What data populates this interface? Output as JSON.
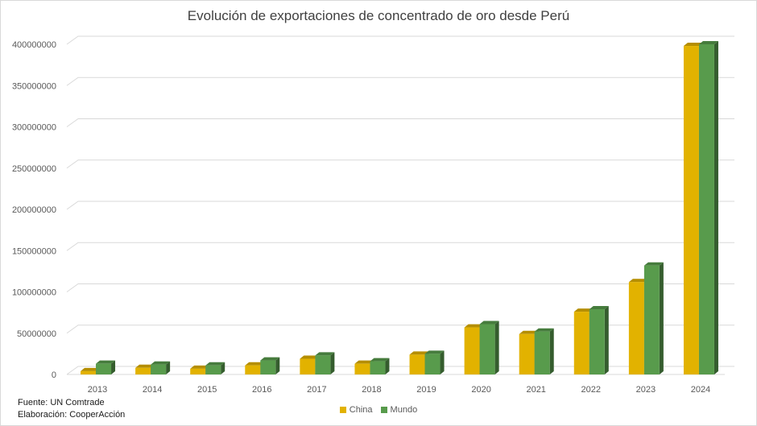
{
  "chart_data": {
    "type": "bar",
    "title": "Evolución de exportaciones de concentrado de oro desde Perú",
    "categories": [
      "2013",
      "2014",
      "2015",
      "2016",
      "2017",
      "2018",
      "2019",
      "2020",
      "2021",
      "2022",
      "2023",
      "2024"
    ],
    "series": [
      {
        "name": "China",
        "color": "#e2b200",
        "values": [
          4000000,
          8000000,
          7000000,
          11000000,
          19000000,
          13000000,
          24000000,
          57000000,
          49000000,
          76000000,
          112000000,
          398000000
        ]
      },
      {
        "name": "Mundo",
        "color": "#589b4c",
        "values": [
          13000000,
          12000000,
          11000000,
          17000000,
          23000000,
          16000000,
          25000000,
          61000000,
          52000000,
          79000000,
          132000000,
          400000000
        ]
      }
    ],
    "y_ticks": [
      "0",
      "50000000",
      "100000000",
      "150000000",
      "200000000",
      "250000000",
      "300000000",
      "350000000",
      "400000000"
    ],
    "ylim": [
      0,
      400000000
    ],
    "grid": true,
    "legend_position": "bottom"
  },
  "source": {
    "line1": "Fuente: UN Comtrade",
    "line2": "Elaboración: CooperAcción"
  }
}
